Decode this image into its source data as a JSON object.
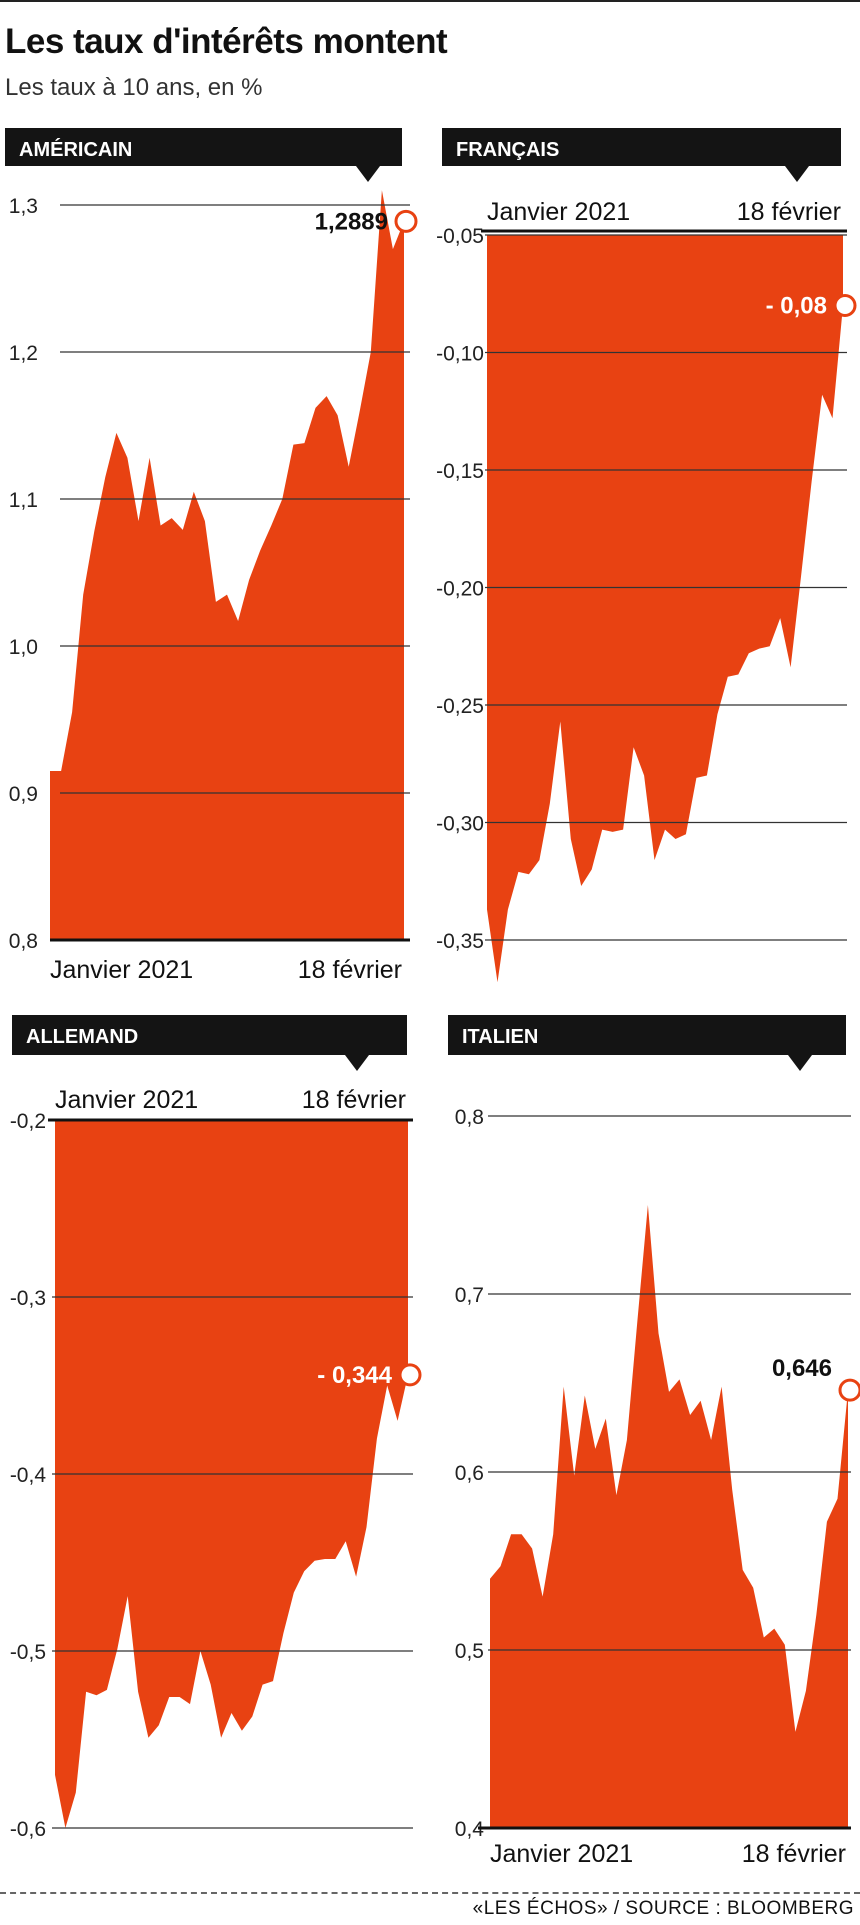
{
  "header": {
    "title": "Les taux d'intérêts montent",
    "subtitle": "Les taux à 10 ans, en %"
  },
  "source": "«LES ÉCHOS» / SOURCE : BLOOMBERG",
  "colors": {
    "fill": "#e84212",
    "band": "#141414",
    "grid": "#333333"
  },
  "chart_data": [
    {
      "id": "us",
      "type": "area",
      "panel_label": "AMÉRICAIN",
      "x_start_label": "Janvier 2021",
      "x_end_label": "18 février",
      "yticks": [
        0.8,
        0.9,
        1.0,
        1.1,
        1.2,
        1.3
      ],
      "ytick_labels": [
        "0,8",
        "0,9",
        "1,0",
        "1,1",
        "1,2",
        "1,3"
      ],
      "ylim": [
        0.8,
        1.3
      ],
      "last_value": 1.2889,
      "last_value_label": "1,2889",
      "values": [
        0.915,
        0.915,
        0.955,
        1.035,
        1.078,
        1.115,
        1.145,
        1.128,
        1.085,
        1.128,
        1.082,
        1.087,
        1.079,
        1.105,
        1.085,
        1.03,
        1.035,
        1.017,
        1.045,
        1.065,
        1.082,
        1.1,
        1.137,
        1.138,
        1.162,
        1.17,
        1.157,
        1.122,
        1.16,
        1.2,
        1.31,
        1.27,
        1.2889
      ]
    },
    {
      "id": "fr",
      "type": "area",
      "panel_label": "FRANÇAIS",
      "x_start_label": "Janvier 2021",
      "x_end_label": "18 février",
      "yticks": [
        -0.05,
        -0.1,
        -0.15,
        -0.2,
        -0.25,
        -0.3,
        -0.35
      ],
      "ytick_labels": [
        "-0,05",
        "-0,10",
        "-0,15",
        "-0,20",
        "-0,25",
        "-0,30",
        "-0,35"
      ],
      "ylim": [
        -0.35,
        -0.05
      ],
      "last_value": -0.08,
      "last_value_label": "- 0,08",
      "values": [
        -0.337,
        -0.368,
        -0.337,
        -0.321,
        -0.322,
        -0.316,
        -0.292,
        -0.257,
        -0.307,
        -0.327,
        -0.32,
        -0.303,
        -0.304,
        -0.303,
        -0.268,
        -0.28,
        -0.316,
        -0.303,
        -0.307,
        -0.305,
        -0.281,
        -0.28,
        -0.254,
        -0.238,
        -0.237,
        -0.228,
        -0.226,
        -0.225,
        -0.213,
        -0.234,
        -0.195,
        -0.155,
        -0.118,
        -0.128,
        -0.08
      ]
    },
    {
      "id": "de",
      "type": "area",
      "panel_label": "ALLEMAND",
      "x_start_label": "Janvier 2021",
      "x_end_label": "18 février",
      "yticks": [
        -0.2,
        -0.3,
        -0.4,
        -0.5,
        -0.6
      ],
      "ytick_labels": [
        "-0,2",
        "-0,3",
        "-0,4",
        "-0,5",
        "-0,6"
      ],
      "ylim": [
        -0.6,
        -0.2
      ],
      "last_value": -0.344,
      "last_value_label": "- 0,344",
      "values": [
        -0.57,
        -0.6,
        -0.58,
        -0.523,
        -0.525,
        -0.522,
        -0.499,
        -0.469,
        -0.523,
        -0.549,
        -0.542,
        -0.526,
        -0.526,
        -0.53,
        -0.5,
        -0.519,
        -0.549,
        -0.535,
        -0.545,
        -0.537,
        -0.519,
        -0.517,
        -0.49,
        -0.467,
        -0.455,
        -0.449,
        -0.448,
        -0.448,
        -0.438,
        -0.458,
        -0.43,
        -0.38,
        -0.35,
        -0.37,
        -0.344
      ]
    },
    {
      "id": "it",
      "type": "area",
      "panel_label": "ITALIEN",
      "x_start_label": "Janvier 2021",
      "x_end_label": "18 février",
      "yticks": [
        0.8,
        0.7,
        0.6,
        0.5,
        0.4
      ],
      "ytick_labels": [
        "0,8",
        "0,7",
        "0,6",
        "0,5",
        "0,4"
      ],
      "ylim": [
        0.4,
        0.8
      ],
      "last_value": 0.646,
      "last_value_label": "0,646",
      "values": [
        0.54,
        0.547,
        0.565,
        0.565,
        0.557,
        0.53,
        0.565,
        0.648,
        0.598,
        0.643,
        0.613,
        0.63,
        0.587,
        0.618,
        0.685,
        0.75,
        0.678,
        0.645,
        0.652,
        0.632,
        0.64,
        0.618,
        0.648,
        0.59,
        0.545,
        0.535,
        0.507,
        0.512,
        0.503,
        0.454,
        0.477,
        0.52,
        0.572,
        0.585,
        0.646
      ]
    }
  ]
}
